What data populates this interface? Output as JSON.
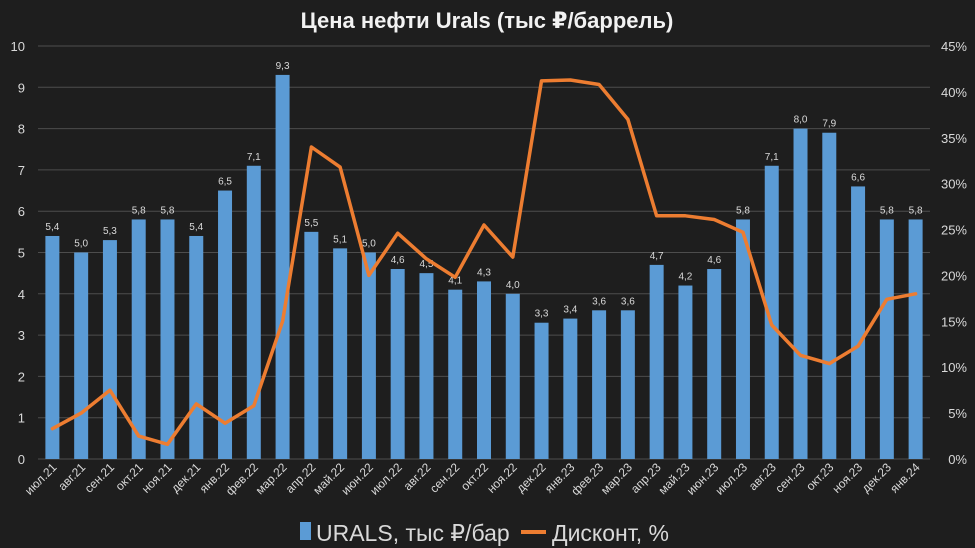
{
  "chart_data": {
    "type": "bar",
    "title": "Цена нефти Urals (тыс ₽/баррель)",
    "categories": [
      "июл.21",
      "авг.21",
      "сен.21",
      "окт.21",
      "ноя.21",
      "дек.21",
      "янв.22",
      "фев.22",
      "мар.22",
      "апр.22",
      "май.22",
      "июн.22",
      "июл.22",
      "авг.22",
      "сен.22",
      "окт.22",
      "ноя.22",
      "дек.22",
      "янв.23",
      "фев.23",
      "мар.23",
      "апр.23",
      "май.23",
      "июн.23",
      "июл.23",
      "авг.23",
      "сен.23",
      "окт.23",
      "ноя.23",
      "дек.23",
      "янв.24"
    ],
    "series": [
      {
        "name": "URALS, тыс ₽/бар",
        "type": "bar",
        "axis": "left",
        "color": "#5b9bd5",
        "values": [
          5.4,
          5.0,
          5.3,
          5.8,
          5.8,
          5.4,
          6.5,
          7.1,
          9.3,
          5.5,
          5.1,
          5.0,
          4.6,
          4.5,
          4.1,
          4.3,
          4.0,
          3.3,
          3.4,
          3.6,
          3.6,
          4.7,
          4.2,
          4.6,
          5.8,
          7.1,
          8.0,
          7.9,
          6.6,
          5.8,
          5.8
        ],
        "labels": [
          "5,4",
          "5,0",
          "5,3",
          "5,8",
          "5,8",
          "5,4",
          "6,5",
          "7,1",
          "9,3",
          "5,5",
          "5,1",
          "5,0",
          "4,6",
          "4,5",
          "4,1",
          "4,3",
          "4,0",
          "3,3",
          "3,4",
          "3,6",
          "3,6",
          "4,7",
          "4,2",
          "4,6",
          "5,8",
          "7,1",
          "8,0",
          "7,9",
          "6,6",
          "5,8",
          "5,8"
        ]
      },
      {
        "name": "Дисконт, %",
        "type": "line",
        "axis": "right",
        "color": "#ed7d31",
        "values": [
          3.3,
          5.0,
          7.5,
          2.5,
          1.6,
          6.0,
          3.9,
          5.8,
          15.0,
          34.0,
          31.8,
          20.0,
          24.6,
          21.8,
          19.8,
          25.5,
          22.0,
          41.2,
          41.3,
          40.8,
          37.0,
          26.5,
          26.5,
          26.1,
          24.7,
          14.6,
          11.3,
          10.4,
          12.3,
          17.4,
          18.0
        ]
      }
    ],
    "y_left": {
      "min": 0,
      "max": 10,
      "ticks": [
        "0",
        "1",
        "2",
        "3",
        "4",
        "5",
        "6",
        "7",
        "8",
        "9",
        "10"
      ]
    },
    "y_right": {
      "min": 0,
      "max": 45,
      "ticks": [
        "0%",
        "5%",
        "10%",
        "15%",
        "20%",
        "25%",
        "30%",
        "35%",
        "40%",
        "45%"
      ]
    },
    "grid": true,
    "legend_position": "bottom",
    "colors": {
      "background": "#1e1e1e",
      "grid": "#4d4d4d",
      "text": "#d9d9d9",
      "title": "#f2f2f2"
    }
  }
}
